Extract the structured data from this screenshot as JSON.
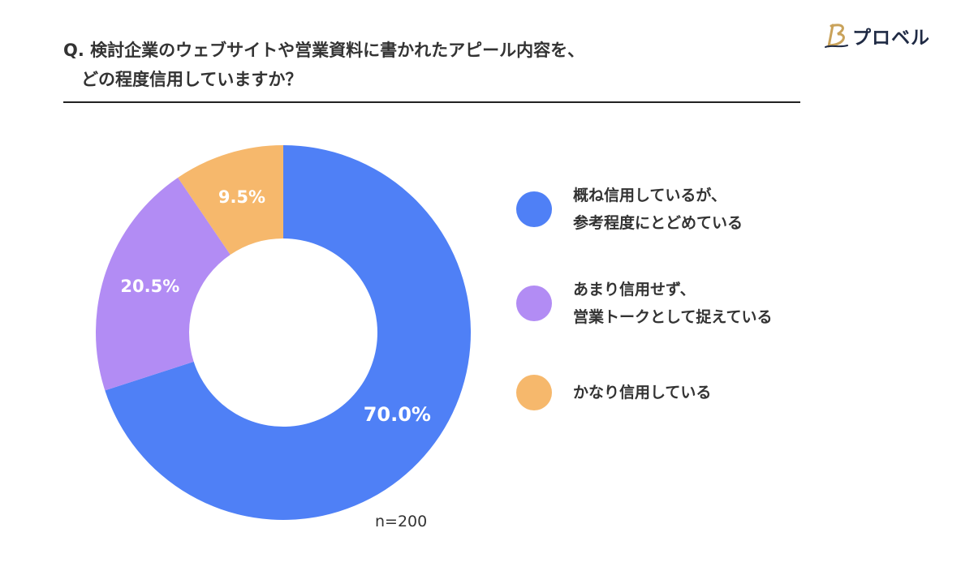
{
  "question": {
    "line1": "Q. 検討企業のウェブサイトや営業資料に書かれたアピール内容を、",
    "line2": "どの程度信用していますか？"
  },
  "brand": {
    "name": "プロベル",
    "icon": "brand-b-icon",
    "color": "#1f2a44",
    "accent": "#c9a25a"
  },
  "sample_note": "n=200",
  "chart_data": {
    "type": "pie",
    "donut": true,
    "title": "",
    "categories": [
      "概ね信用しているが、\n参考程度にとどめている",
      "あまり信用せず、\n営業トークとして捉えている",
      "かなり信用している"
    ],
    "values": [
      70.0,
      20.5,
      9.5
    ],
    "labels": [
      "70.0%",
      "20.5%",
      "9.5%"
    ],
    "colors": [
      "#4f80f6",
      "#b28cf4",
      "#f6b86c"
    ],
    "start": "12 o'clock",
    "direction": "clockwise",
    "legend_position": "right"
  }
}
